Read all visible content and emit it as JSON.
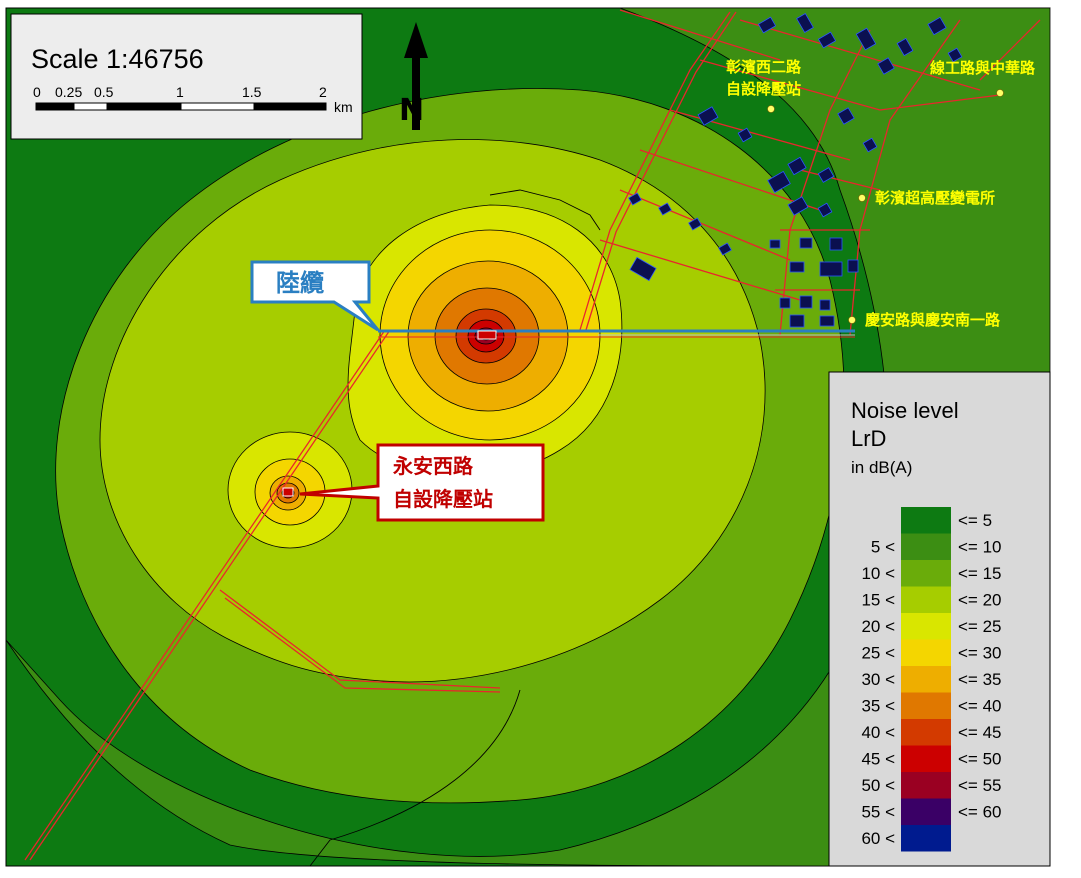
{
  "scale_bar": {
    "title": "Scale 1:46756",
    "ticks": [
      "0",
      "0.25",
      "0.5",
      "1",
      "1.5",
      "2"
    ],
    "unit": "km"
  },
  "north_arrow": {
    "letter": "N",
    "icon": "north-arrow-icon"
  },
  "callouts": {
    "land_cable": "陸纜",
    "yongan_line1": "永安西路",
    "yongan_line2": "自設降壓站"
  },
  "place_labels": {
    "changbin_w2_line1": "彰濱西二路",
    "changbin_w2_line2": "自設降壓站",
    "xiangong_zhonghua": "線工路與中華路",
    "changbin_substation": "彰濱超高壓變電所",
    "qingan": "慶安路與慶安南一路"
  },
  "legend": {
    "title_line1": "Noise level",
    "title_line2": "LrD",
    "unit": "in dB(A)",
    "classes": [
      {
        "lower": "",
        "upper": "<=  5",
        "color": "#0d7a12"
      },
      {
        "lower": "5 <",
        "upper": "<= 10",
        "color": "#3c8e13"
      },
      {
        "lower": "10 <",
        "upper": "<= 15",
        "color": "#6aac0a"
      },
      {
        "lower": "15 <",
        "upper": "<= 20",
        "color": "#a6cd00"
      },
      {
        "lower": "20 <",
        "upper": "<= 25",
        "color": "#d9e600"
      },
      {
        "lower": "25 <",
        "upper": "<= 30",
        "color": "#f4d600"
      },
      {
        "lower": "30 <",
        "upper": "<= 35",
        "color": "#eeae00"
      },
      {
        "lower": "35 <",
        "upper": "<= 40",
        "color": "#e07800"
      },
      {
        "lower": "40 <",
        "upper": "<= 45",
        "color": "#d33a00"
      },
      {
        "lower": "45 <",
        "upper": "<= 50",
        "color": "#cc0000"
      },
      {
        "lower": "50 <",
        "upper": "<= 55",
        "color": "#9a0022"
      },
      {
        "lower": "55 <",
        "upper": "<= 60",
        "color": "#3a0066"
      },
      {
        "lower": "60 <",
        "upper": "",
        "color": "#001b8f"
      }
    ]
  },
  "colors": {
    "cable_blue": "#2a7fc2",
    "road_red": "#e8262c",
    "building_navy": "#0b1050",
    "place_label_yellow": "#ffff00",
    "callout_red": "#c00000"
  }
}
